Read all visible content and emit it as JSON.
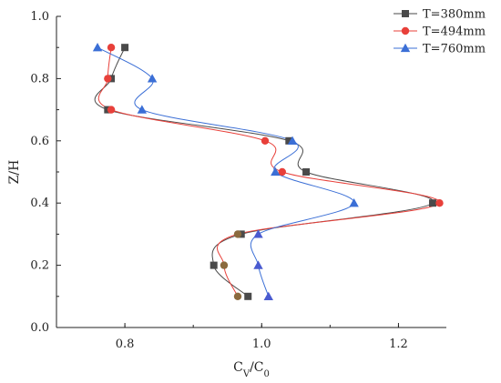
{
  "chart_data": {
    "type": "scatter",
    "xlabel": "C_V/C_0",
    "ylabel": "Z/H",
    "xlim": [
      0.7,
      1.27
    ],
    "ylim": [
      0.0,
      1.0
    ],
    "x_ticks": [
      0.8,
      1.0,
      1.2
    ],
    "y_ticks": [
      0.0,
      0.2,
      0.4,
      0.6,
      0.8,
      1.0
    ],
    "legend_position": "top-right",
    "grid": false,
    "series": [
      {
        "name": "T=380mm",
        "color": "#4a4a4a",
        "marker": "square",
        "points": [
          {
            "x": 0.8,
            "y": 0.9
          },
          {
            "x": 0.78,
            "y": 0.8
          },
          {
            "x": 0.775,
            "y": 0.7
          },
          {
            "x": 1.04,
            "y": 0.6
          },
          {
            "x": 1.065,
            "y": 0.5
          },
          {
            "x": 1.25,
            "y": 0.4
          },
          {
            "x": 0.97,
            "y": 0.3
          },
          {
            "x": 0.93,
            "y": 0.2
          },
          {
            "x": 0.98,
            "y": 0.1
          }
        ]
      },
      {
        "name": "T=494mm",
        "color": "#e8403a",
        "marker": "circle",
        "points": [
          {
            "x": 0.78,
            "y": 0.9
          },
          {
            "x": 0.775,
            "y": 0.8
          },
          {
            "x": 0.78,
            "y": 0.7
          },
          {
            "x": 1.005,
            "y": 0.6
          },
          {
            "x": 1.03,
            "y": 0.5
          },
          {
            "x": 1.26,
            "y": 0.4
          },
          {
            "x": 0.965,
            "y": 0.3
          },
          {
            "x": 0.945,
            "y": 0.2
          },
          {
            "x": 0.965,
            "y": 0.1
          }
        ]
      },
      {
        "name": "T=760mm",
        "color": "#3b6fd6",
        "marker": "triangle",
        "points": [
          {
            "x": 0.76,
            "y": 0.9
          },
          {
            "x": 0.84,
            "y": 0.8
          },
          {
            "x": 0.825,
            "y": 0.7
          },
          {
            "x": 1.045,
            "y": 0.6
          },
          {
            "x": 1.02,
            "y": 0.5
          },
          {
            "x": 1.135,
            "y": 0.4
          },
          {
            "x": 0.995,
            "y": 0.3
          },
          {
            "x": 0.995,
            "y": 0.2
          },
          {
            "x": 1.01,
            "y": 0.1
          }
        ]
      }
    ],
    "marker_colors": {
      "square": "#4a4a4a",
      "circle_lower": "#8b6a3e",
      "triangle_lower": "#4a5bd0"
    }
  }
}
